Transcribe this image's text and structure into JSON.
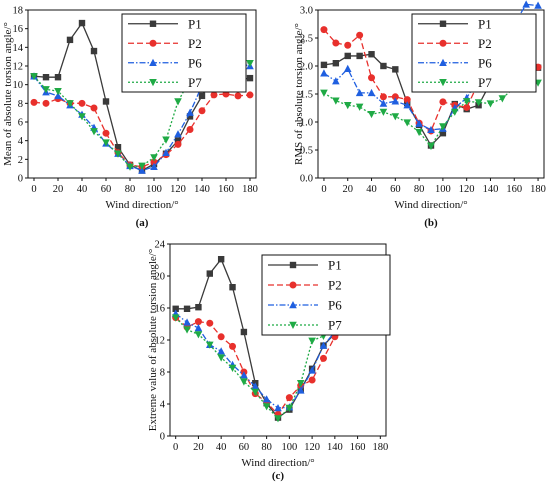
{
  "chart_data": [
    {
      "type": "line",
      "panel": "(a)",
      "xlabel": "Wind direction/°",
      "ylabel": "Mean of absolute torsion angle/°",
      "xlim": [
        -5,
        185
      ],
      "ylim": [
        0,
        18
      ],
      "xticks": [
        0,
        20,
        40,
        60,
        80,
        100,
        120,
        140,
        160,
        180
      ],
      "yticks": [
        0,
        2,
        4,
        6,
        8,
        10,
        12,
        14,
        16,
        18
      ],
      "x": [
        0,
        10,
        20,
        30,
        40,
        50,
        60,
        70,
        80,
        90,
        100,
        110,
        120,
        130,
        140,
        150,
        160,
        170,
        180
      ],
      "legend_position": "top-right",
      "series": [
        {
          "name": "P1",
          "color": "#3a3a3a",
          "marker": "square",
          "dash": "solid",
          "values": [
            10.9,
            10.8,
            10.8,
            14.8,
            16.6,
            13.6,
            8.2,
            3.3,
            1.4,
            0.8,
            1.5,
            2.6,
            4.0,
            6.6,
            8.8,
            10.8,
            10.9,
            10.5,
            10.7
          ]
        },
        {
          "name": "P2",
          "color": "#e8302c",
          "marker": "circle",
          "dash": "dash",
          "values": [
            8.1,
            8.0,
            8.5,
            8.0,
            8.0,
            7.5,
            4.8,
            2.7,
            1.4,
            1.2,
            1.7,
            2.5,
            3.6,
            5.2,
            7.2,
            8.9,
            9.0,
            8.8,
            8.9
          ]
        },
        {
          "name": "P6",
          "color": "#1f5fe0",
          "marker": "triangle-up",
          "dash": "dashdot",
          "values": [
            10.9,
            9.2,
            8.8,
            7.8,
            6.8,
            5.4,
            3.7,
            2.6,
            1.3,
            0.8,
            1.2,
            2.7,
            4.7,
            7.0,
            9.9,
            12.9,
            12.1,
            12.3,
            12.0
          ]
        },
        {
          "name": "P7",
          "color": "#1faa45",
          "marker": "triangle-down",
          "dash": "dot",
          "values": [
            10.9,
            9.5,
            9.3,
            8.0,
            6.6,
            5.0,
            3.8,
            2.6,
            1.2,
            1.3,
            2.2,
            4.1,
            8.2,
            10.5,
            12.0,
            12.5,
            12.4,
            12.5,
            12.3
          ]
        }
      ]
    },
    {
      "type": "line",
      "panel": "(b)",
      "xlabel": "Wind direction/°",
      "ylabel": "RMS of absolute torsion angle/°",
      "xlim": [
        -5,
        185
      ],
      "ylim": [
        0,
        3.0
      ],
      "xticks": [
        0,
        20,
        40,
        60,
        80,
        100,
        120,
        140,
        160,
        180
      ],
      "yticks": [
        0.0,
        0.5,
        1.0,
        1.5,
        2.0,
        2.5,
        3.0
      ],
      "ytick_labels": [
        "0.0",
        "0.5",
        "1.0",
        "1.5",
        "2.0",
        "2.5",
        "3.0"
      ],
      "x": [
        0,
        10,
        20,
        30,
        40,
        50,
        60,
        70,
        80,
        90,
        100,
        110,
        120,
        130,
        140,
        150,
        160,
        170,
        180
      ],
      "legend_position": "top-right",
      "series": [
        {
          "name": "P1",
          "color": "#3a3a3a",
          "marker": "square",
          "dash": "solid",
          "values": [
            2.02,
            2.05,
            2.18,
            2.18,
            2.21,
            2.0,
            1.94,
            1.34,
            0.95,
            0.58,
            0.8,
            1.32,
            1.23,
            1.3,
            1.7,
            1.88,
            1.93,
            2.07,
            1.97
          ]
        },
        {
          "name": "P2",
          "color": "#e8302c",
          "marker": "circle",
          "dash": "dash",
          "values": [
            2.65,
            2.41,
            2.37,
            2.55,
            1.79,
            1.45,
            1.45,
            1.4,
            0.98,
            0.84,
            1.36,
            1.3,
            1.26,
            1.7,
            2.12,
            1.6,
            1.75,
            2.0,
            1.98
          ]
        },
        {
          "name": "P6",
          "color": "#1f5fe0",
          "marker": "triangle-up",
          "dash": "dashdot",
          "values": [
            1.87,
            1.73,
            1.95,
            1.52,
            1.52,
            1.33,
            1.37,
            1.3,
            0.97,
            0.86,
            0.88,
            1.25,
            1.43,
            1.78,
            2.05,
            2.52,
            2.75,
            3.1,
            3.08
          ]
        },
        {
          "name": "P7",
          "color": "#1faa45",
          "marker": "triangle-down",
          "dash": "dot",
          "values": [
            1.52,
            1.38,
            1.3,
            1.27,
            1.14,
            1.18,
            1.1,
            0.99,
            0.82,
            0.57,
            0.92,
            1.18,
            1.37,
            1.35,
            1.33,
            1.42,
            1.62,
            1.6,
            1.7
          ]
        }
      ]
    },
    {
      "type": "line",
      "panel": "(c)",
      "xlabel": "Wind direction/°",
      "ylabel": "Extreme value of absolute torsion angle/°",
      "xlim": [
        -5,
        185
      ],
      "ylim": [
        0,
        24
      ],
      "xticks": [
        0,
        20,
        40,
        60,
        80,
        100,
        120,
        140,
        160,
        180
      ],
      "yticks": [
        0,
        4,
        8,
        12,
        16,
        20,
        24
      ],
      "x": [
        0,
        10,
        20,
        30,
        40,
        50,
        60,
        70,
        80,
        90,
        100,
        110,
        120,
        130,
        140,
        150,
        160,
        170,
        180
      ],
      "legend_position": "top-center",
      "series": [
        {
          "name": "P1",
          "color": "#3a3a3a",
          "marker": "square",
          "dash": "solid",
          "values": [
            15.9,
            15.9,
            16.1,
            20.3,
            22.1,
            18.6,
            13.0,
            6.6,
            4.1,
            2.3,
            3.3,
            5.8,
            8.4,
            11.3,
            12.8,
            15.6,
            15.8,
            15.7,
            15.8
          ]
        },
        {
          "name": "P2",
          "color": "#e8302c",
          "marker": "circle",
          "dash": "dash",
          "values": [
            14.8,
            13.6,
            14.3,
            14.1,
            12.4,
            11.2,
            8.0,
            5.3,
            4.2,
            2.7,
            4.8,
            6.3,
            7.0,
            9.7,
            12.4,
            13.1,
            13.5,
            13.7,
            13.9
          ]
        },
        {
          "name": "P6",
          "color": "#1f5fe0",
          "marker": "triangle-up",
          "dash": "dashdot",
          "values": [
            15.3,
            14.2,
            13.5,
            11.4,
            10.6,
            8.9,
            7.6,
            6.2,
            4.6,
            3.5,
            3.6,
            5.7,
            8.2,
            11.3,
            13.0,
            19.3,
            19.0,
            19.8,
            19.3
          ]
        },
        {
          "name": "P7",
          "color": "#1faa45",
          "marker": "triangle-down",
          "dash": "dot",
          "values": [
            14.8,
            13.3,
            12.7,
            11.4,
            9.8,
            8.5,
            6.8,
            5.5,
            3.7,
            2.2,
            3.5,
            6.6,
            11.9,
            12.5,
            14.1,
            15.8,
            16.4,
            16.3,
            16.3
          ]
        }
      ]
    }
  ]
}
